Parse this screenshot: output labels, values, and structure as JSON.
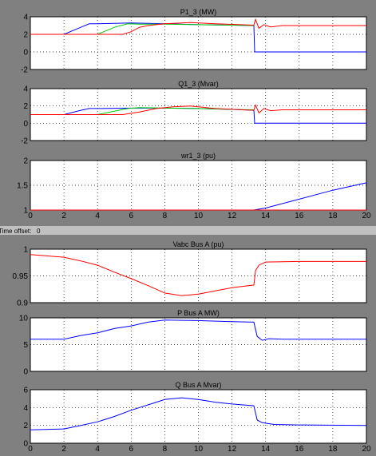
{
  "caption": {
    "label": "Time offset:",
    "value": "0"
  },
  "chart_data": [
    {
      "type": "line",
      "title": "P1_3 (MW)",
      "xlim": [
        0,
        20
      ],
      "ylim": [
        -2,
        4
      ],
      "xticks": [],
      "yticks": [
        -2,
        0,
        2,
        4
      ],
      "grid": true,
      "series": [
        {
          "color": "#0000ff",
          "x": [
            0,
            2,
            3,
            3.5,
            4,
            6,
            8,
            10,
            12,
            13.3,
            13.35,
            20
          ],
          "y": [
            2,
            2,
            2.8,
            3.2,
            3.2,
            3.3,
            3.2,
            3.1,
            3.05,
            3.0,
            0,
            0
          ]
        },
        {
          "color": "#00cc00",
          "x": [
            0,
            4,
            5,
            5.8,
            6.5,
            8,
            10,
            12,
            13.3
          ],
          "y": [
            2,
            2,
            2.8,
            3.2,
            3.15,
            3.15,
            3.1,
            3.05,
            3.0
          ]
        },
        {
          "color": "#ff0000",
          "x": [
            0,
            5.5,
            6,
            6.5,
            7,
            8,
            9.5,
            11,
            13.3,
            13.4,
            13.6,
            13.9,
            14.3,
            15,
            20
          ],
          "y": [
            2,
            2,
            2.3,
            2.8,
            3.0,
            3.2,
            3.35,
            3.2,
            3.05,
            3.7,
            2.7,
            3.1,
            2.85,
            3.0,
            3.0
          ]
        }
      ]
    },
    {
      "type": "line",
      "title": "Q1_3 (Mvar)",
      "xlim": [
        0,
        20
      ],
      "ylim": [
        -2,
        4
      ],
      "xticks": [],
      "yticks": [
        -2,
        0,
        2,
        4
      ],
      "grid": true,
      "series": [
        {
          "color": "#0000ff",
          "x": [
            0,
            2,
            3,
            3.5,
            4,
            6,
            8,
            10,
            12,
            13.3,
            13.35,
            20
          ],
          "y": [
            1,
            1,
            1.5,
            1.7,
            1.7,
            1.75,
            1.75,
            1.7,
            1.6,
            1.5,
            0,
            0
          ]
        },
        {
          "color": "#00cc00",
          "x": [
            0,
            4,
            5,
            5.8,
            6.5,
            8,
            10,
            12,
            13.3
          ],
          "y": [
            1,
            1,
            1.4,
            1.7,
            1.8,
            1.75,
            1.7,
            1.6,
            1.55
          ]
        },
        {
          "color": "#ff0000",
          "x": [
            0,
            5.5,
            6.5,
            7.5,
            8.5,
            9.5,
            11,
            13.3,
            13.4,
            13.6,
            13.9,
            14.3,
            15,
            20
          ],
          "y": [
            1,
            1,
            1.3,
            1.7,
            1.9,
            2.0,
            1.7,
            1.5,
            2.1,
            1.2,
            1.7,
            1.45,
            1.55,
            1.55
          ]
        }
      ]
    },
    {
      "type": "line",
      "title": "wr1_3 (pu)",
      "xlim": [
        0,
        20
      ],
      "ylim": [
        1,
        2
      ],
      "xticks": [
        0,
        2,
        4,
        6,
        8,
        10,
        12,
        14,
        16,
        18,
        20
      ],
      "yticks": [
        1,
        1.5,
        2
      ],
      "grid": true,
      "series": [
        {
          "color": "#0000ff",
          "x": [
            0,
            13.3,
            14,
            16,
            18,
            20
          ],
          "y": [
            1,
            1,
            1.04,
            1.22,
            1.4,
            1.55
          ]
        },
        {
          "color": "#ff0000",
          "x": [
            0,
            20
          ],
          "y": [
            1,
            1
          ]
        }
      ]
    },
    {
      "type": "line",
      "title": "Vabc  Bus A  (pu)",
      "xlim": [
        0,
        20
      ],
      "ylim": [
        0.9,
        1
      ],
      "xticks": [],
      "yticks": [
        0.9,
        0.95,
        1
      ],
      "grid": true,
      "series": [
        {
          "color": "#ff0000",
          "x": [
            0,
            2,
            3,
            4,
            5,
            6,
            7,
            8,
            9,
            10,
            11,
            12,
            13.3,
            13.4,
            13.6,
            14,
            16,
            18,
            20
          ],
          "y": [
            0.99,
            0.985,
            0.978,
            0.97,
            0.957,
            0.945,
            0.932,
            0.918,
            0.913,
            0.916,
            0.922,
            0.928,
            0.933,
            0.96,
            0.97,
            0.976,
            0.977,
            0.977,
            0.977
          ]
        }
      ]
    },
    {
      "type": "line",
      "title": "P  Bus A  MW)",
      "xlim": [
        0,
        20
      ],
      "ylim": [
        0,
        10
      ],
      "xticks": [],
      "yticks": [
        0,
        5,
        10
      ],
      "grid": true,
      "series": [
        {
          "color": "#0000ff",
          "x": [
            0,
            2,
            3,
            4,
            5,
            6,
            7,
            8,
            10,
            12,
            13.3,
            13.5,
            13.8,
            14.2,
            15,
            20
          ],
          "y": [
            6,
            6,
            6.7,
            7.2,
            8,
            8.5,
            9.2,
            9.6,
            9.5,
            9.3,
            9.2,
            6.5,
            5.8,
            6.1,
            6.0,
            6.0
          ]
        }
      ]
    },
    {
      "type": "line",
      "title": "Q  Bus A  Mvar)",
      "xlim": [
        0,
        20
      ],
      "ylim": [
        0,
        6
      ],
      "xticks": [
        0,
        2,
        4,
        6,
        8,
        10,
        12,
        14,
        16,
        18,
        20
      ],
      "yticks": [
        0,
        2,
        4,
        6
      ],
      "grid": true,
      "series": [
        {
          "color": "#0000ff",
          "x": [
            0,
            2,
            3,
            4,
            5,
            6,
            7,
            8,
            9,
            10,
            11,
            12,
            13.3,
            13.5,
            13.8,
            14.5,
            16,
            20
          ],
          "y": [
            1.5,
            1.6,
            2.0,
            2.4,
            3.0,
            3.7,
            4.3,
            4.9,
            5.1,
            4.9,
            4.6,
            4.4,
            4.2,
            2.6,
            2.3,
            2.1,
            2.05,
            2.0
          ]
        }
      ]
    }
  ]
}
